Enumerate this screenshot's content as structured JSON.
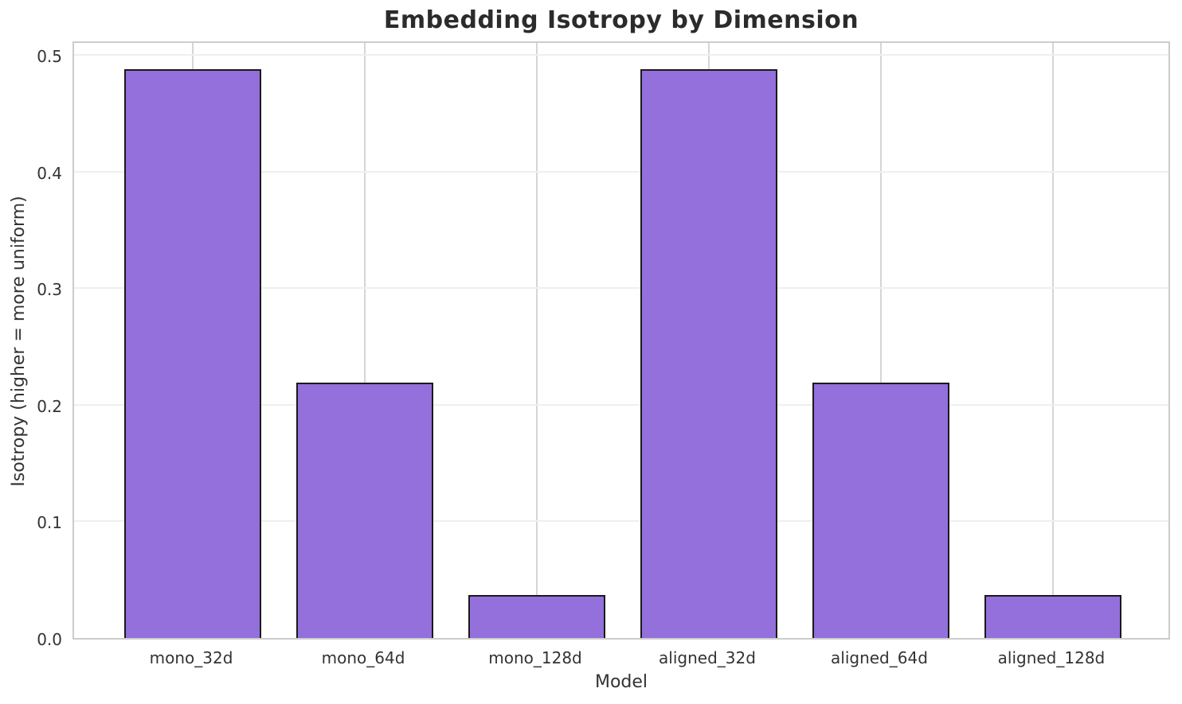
{
  "chart_data": {
    "type": "bar",
    "title": "Embedding Isotropy by Dimension",
    "xlabel": "Model",
    "ylabel": "Isotropy (higher = more uniform)",
    "categories": [
      "mono_32d",
      "mono_64d",
      "mono_128d",
      "aligned_32d",
      "aligned_64d",
      "aligned_128d"
    ],
    "values": [
      0.488,
      0.219,
      0.037,
      0.488,
      0.219,
      0.037
    ],
    "ylim": [
      0,
      0.513
    ],
    "yticks": [
      0.0,
      0.1,
      0.2,
      0.3,
      0.4,
      0.5
    ],
    "ytick_labels": [
      "0.0",
      "0.1",
      "0.2",
      "0.3",
      "0.4",
      "0.5"
    ],
    "grid": true,
    "legend": "none",
    "bar_color": "#9370DB",
    "bar_edge_color": "#1a1a1a"
  }
}
